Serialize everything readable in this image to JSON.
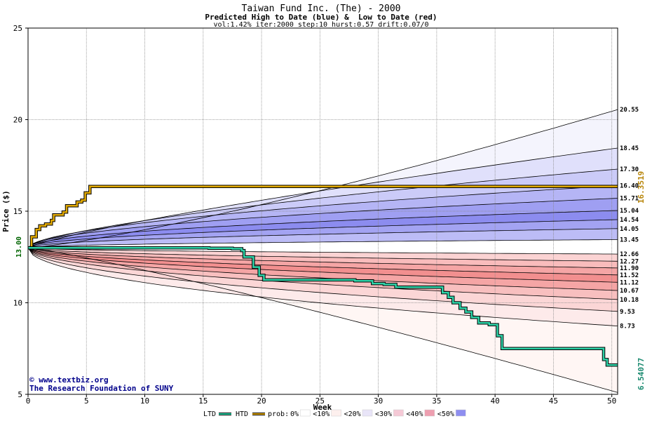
{
  "chart_data": {
    "type": "area",
    "title": "Taiwan Fund Inc. (The) - 2000",
    "subtitle": "Predicted High to Date (blue) &  Low to Date (red)",
    "params": "vol:1.42% iter:2000 step:10 hurst:0.57 drift:0.07/0",
    "xlabel": "Week",
    "ylabel": "Price ($)",
    "xlim": [
      0,
      50.5
    ],
    "ylim": [
      5,
      25
    ],
    "x_ticks": [
      0,
      5,
      10,
      15,
      20,
      25,
      30,
      35,
      40,
      45,
      50
    ],
    "y_ticks": [
      5,
      10,
      15,
      20,
      25
    ],
    "grid": true,
    "start_price": 13.0,
    "start_label": "13.00",
    "high_label": "16.3519",
    "low_label": "6.54077",
    "blue_series": [
      {
        "label": "20.55",
        "final": 20.55,
        "k": 2.51,
        "fill": "#f4f4fd"
      },
      {
        "label": "18.45",
        "final": 18.45,
        "k": 1.6,
        "fill": "#e0e0fb"
      },
      {
        "label": "17.30",
        "final": 17.3,
        "k": 1.31,
        "fill": "#cbcbf8"
      },
      {
        "label": "16.40",
        "final": 16.4,
        "k": 1.12,
        "fill": "#b5b5f5"
      },
      {
        "label": "15.71",
        "final": 15.71,
        "k": 1.05,
        "fill": "#9f9ff2"
      },
      {
        "label": "15.04",
        "final": 15.04,
        "k": 1.0,
        "fill": "#8c8cef"
      },
      {
        "label": "14.54",
        "final": 14.54,
        "k": 1.0,
        "fill": "#a3a3f2"
      },
      {
        "label": "14.05",
        "final": 14.05,
        "k": 1.0,
        "fill": "#bcbcf6"
      },
      {
        "label": "13.45",
        "final": 13.45,
        "k": 1.0,
        "fill": "#dedefa"
      }
    ],
    "red_series": [
      {
        "label": "12.66",
        "final": 12.66,
        "k": 1.0,
        "fill": "#fde8e8"
      },
      {
        "label": "12.27",
        "final": 12.27,
        "k": 1.0,
        "fill": "#fbd3d3"
      },
      {
        "label": "11.90",
        "final": 11.9,
        "k": 1.0,
        "fill": "#f9bcbc"
      },
      {
        "label": "11.52",
        "final": 11.52,
        "k": 1.0,
        "fill": "#f5a5a5"
      },
      {
        "label": "11.12",
        "final": 11.12,
        "k": 1.0,
        "fill": "#f28f8f"
      },
      {
        "label": "10.67",
        "final": 10.67,
        "k": 1.0,
        "fill": "#f5a5a5"
      },
      {
        "label": "10.18",
        "final": 10.18,
        "k": 1.0,
        "fill": "#f8bfbf"
      },
      {
        "label": "9.53",
        "final": 9.53,
        "k": 1.0,
        "fill": "#fbd6d6"
      },
      {
        "label": "8.73",
        "final": 8.73,
        "k": 1.0,
        "fill": "#fdeaea"
      },
      {
        "label": "",
        "final": 5.1,
        "k": 2.3,
        "fill": "#fff6f4"
      }
    ],
    "htd": {
      "name": "HTD",
      "color": "#e0a800",
      "points": [
        [
          0,
          13
        ],
        [
          0.3,
          13.6
        ],
        [
          0.7,
          14.0
        ],
        [
          1.0,
          14.2
        ],
        [
          1.5,
          14.3
        ],
        [
          2.0,
          14.5
        ],
        [
          2.2,
          14.8
        ],
        [
          3.0,
          14.95
        ],
        [
          3.3,
          15.3
        ],
        [
          4.2,
          15.5
        ],
        [
          4.6,
          15.6
        ],
        [
          4.9,
          16.0
        ],
        [
          5.3,
          16.35
        ],
        [
          50.5,
          16.35
        ]
      ]
    },
    "ltd": {
      "name": "LTD",
      "color": "#2ed3a8",
      "points": [
        [
          0,
          13
        ],
        [
          15.5,
          12.98
        ],
        [
          17.5,
          12.95
        ],
        [
          18.3,
          12.85
        ],
        [
          18.5,
          12.5
        ],
        [
          19.3,
          11.95
        ],
        [
          19.8,
          11.5
        ],
        [
          20.2,
          11.25
        ],
        [
          28.0,
          11.2
        ],
        [
          29.5,
          11.05
        ],
        [
          30.5,
          11.0
        ],
        [
          31.5,
          10.85
        ],
        [
          34.8,
          10.85
        ],
        [
          35.5,
          10.55
        ],
        [
          36.0,
          10.3
        ],
        [
          36.4,
          10.0
        ],
        [
          37.0,
          9.7
        ],
        [
          37.5,
          9.5
        ],
        [
          38.0,
          9.2
        ],
        [
          38.6,
          8.9
        ],
        [
          39.5,
          8.8
        ],
        [
          40.2,
          8.2
        ],
        [
          40.6,
          7.5
        ],
        [
          48.5,
          7.5
        ],
        [
          49.3,
          6.9
        ],
        [
          49.6,
          6.6
        ],
        [
          50.5,
          6.6
        ]
      ]
    }
  },
  "legend": {
    "ltd": "LTD",
    "htd": "HTD",
    "prob_prefix": "prob:",
    "items": [
      {
        "label": "0%",
        "color": "#ffffff"
      },
      {
        "label": "<10%",
        "color": "#fdf0ee"
      },
      {
        "label": "<20%",
        "color": "#e9e5f8"
      },
      {
        "label": "<30%",
        "color": "#f5c9d6"
      },
      {
        "label": "<40%",
        "color": "#ee9fb0"
      },
      {
        "label": "<50%",
        "color": "#8e8ef0"
      }
    ]
  },
  "watermark": {
    "line1": "www.textbiz.org",
    "line2": "The Research Foundation of SUNY"
  }
}
